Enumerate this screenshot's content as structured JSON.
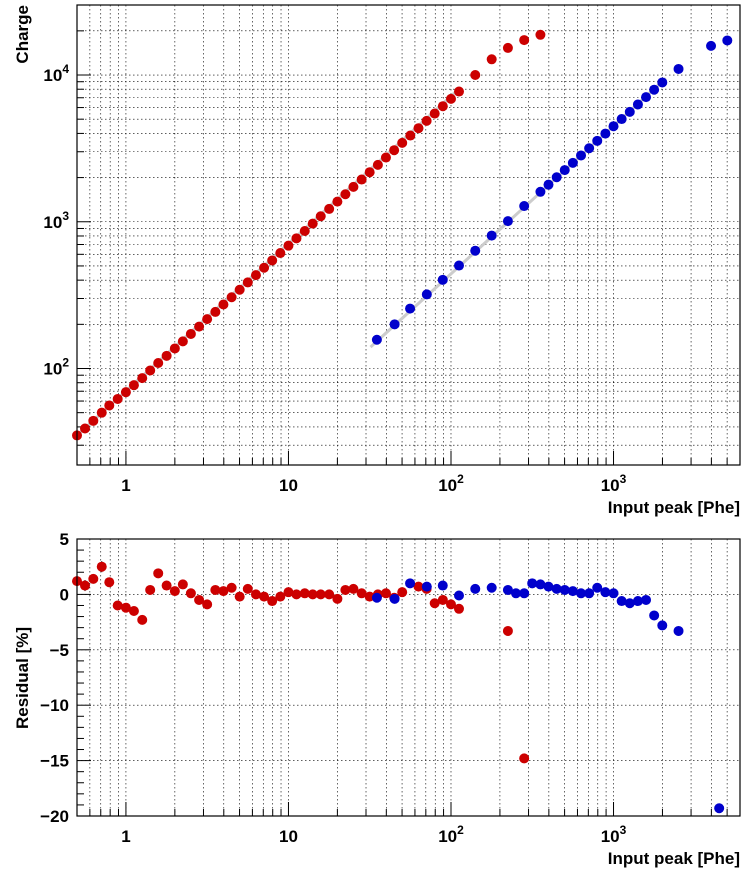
{
  "chart_data": [
    {
      "type": "scatter",
      "title": "",
      "xlabel": "Input peak  [Phe]",
      "ylabel": "Charge",
      "x_scale": "log",
      "y_scale": "log",
      "xlim": [
        0.5,
        6000
      ],
      "ylim": [
        22,
        30000
      ],
      "grid": true,
      "x_ticks": [
        {
          "value": 1,
          "label": "1"
        },
        {
          "value": 10,
          "label": "10"
        },
        {
          "value": 100,
          "label": "10",
          "exp": "2"
        },
        {
          "value": 1000,
          "label": "10",
          "exp": "3"
        }
      ],
      "y_ticks": [
        {
          "value": 100,
          "label": "10",
          "exp": "2"
        },
        {
          "value": 1000,
          "label": "10",
          "exp": "3"
        },
        {
          "value": 10000,
          "label": "10",
          "exp": "4"
        }
      ],
      "series": [
        {
          "color": "#cc0000",
          "fit_line_color": "#cccccc",
          "fit_x": [
            0.5,
            110
          ],
          "fit_y": [
            35,
            7900
          ],
          "x": [
            0.5,
            0.56,
            0.63,
            0.71,
            0.79,
            0.89,
            1.0,
            1.12,
            1.26,
            1.41,
            1.58,
            1.78,
            2.0,
            2.24,
            2.51,
            2.82,
            3.16,
            3.55,
            3.98,
            4.47,
            5.01,
            5.62,
            6.31,
            7.08,
            7.94,
            8.91,
            10.0,
            11.2,
            12.6,
            14.1,
            15.8,
            17.8,
            20.0,
            22.4,
            25.1,
            28.2,
            31.6,
            35.5,
            39.8,
            44.7,
            50.1,
            56.2,
            63.1,
            70.8,
            79.4,
            89.1,
            100,
            112,
            141,
            178,
            224,
            282,
            355
          ],
          "y": [
            35,
            39,
            44,
            50,
            56,
            62,
            69,
            77,
            86,
            97,
            109,
            122,
            137,
            153,
            172,
            193,
            217,
            243,
            273,
            306,
            344,
            386,
            433,
            486,
            545,
            612,
            687,
            771,
            865,
            971,
            1090,
            1223,
            1372,
            1540,
            1728,
            1939,
            2176,
            2441,
            2739,
            3073,
            3448,
            3868,
            4340,
            4870,
            5464,
            6130,
            6878,
            7717,
            10000,
            12800,
            15300,
            17300,
            18800
          ]
        },
        {
          "color": "#0000cc",
          "fit_line_color": "#cccccc",
          "fit_x": [
            32,
            2100
          ],
          "fit_y": [
            140,
            9500
          ],
          "x": [
            35,
            45,
            56,
            71,
            89,
            112,
            141,
            178,
            224,
            282,
            355,
            398,
            447,
            501,
            562,
            631,
            708,
            794,
            891,
            1000,
            1122,
            1259,
            1413,
            1585,
            1778,
            1995,
            2512,
            3981,
            5012
          ],
          "y": [
            157,
            200,
            256,
            320,
            402,
            503,
            635,
            805,
            1010,
            1280,
            1600,
            1790,
            2010,
            2250,
            2520,
            2830,
            3170,
            3560,
            3990,
            4480,
            5010,
            5610,
            6300,
            7070,
            7940,
            8900,
            11000,
            15800,
            17200
          ]
        }
      ]
    },
    {
      "type": "scatter",
      "title": "",
      "xlabel": "Input peak  [Phe]",
      "ylabel": "Residual [%]",
      "x_scale": "log",
      "y_scale": "linear",
      "xlim": [
        0.5,
        6000
      ],
      "ylim": [
        -20,
        5
      ],
      "grid": true,
      "x_ticks": [
        {
          "value": 1,
          "label": "1"
        },
        {
          "value": 10,
          "label": "10"
        },
        {
          "value": 100,
          "label": "10",
          "exp": "2"
        },
        {
          "value": 1000,
          "label": "10",
          "exp": "3"
        }
      ],
      "y_ticks": [
        {
          "value": 5,
          "label": "5"
        },
        {
          "value": 0,
          "label": "0"
        },
        {
          "value": -5,
          "label": "−5"
        },
        {
          "value": -10,
          "label": "−10"
        },
        {
          "value": -15,
          "label": "−15"
        },
        {
          "value": -20,
          "label": "−20"
        }
      ],
      "series": [
        {
          "color": "#cc0000",
          "x": [
            0.5,
            0.56,
            0.63,
            0.71,
            0.79,
            0.89,
            1.0,
            1.12,
            1.26,
            1.41,
            1.58,
            1.78,
            2.0,
            2.24,
            2.51,
            2.82,
            3.16,
            3.55,
            3.98,
            4.47,
            5.01,
            5.62,
            6.31,
            7.08,
            7.94,
            8.91,
            10.0,
            11.2,
            12.6,
            14.1,
            15.8,
            17.8,
            20.0,
            22.4,
            25.1,
            28.2,
            31.6,
            35.5,
            39.8,
            44.7,
            50.1,
            63.1,
            70.8,
            79.4,
            89.1,
            100,
            112,
            224,
            282
          ],
          "y": [
            1.2,
            0.8,
            1.4,
            2.5,
            1.1,
            -1.0,
            -1.2,
            -1.5,
            -2.3,
            0.4,
            1.9,
            0.8,
            0.3,
            0.9,
            0.1,
            -0.5,
            -0.9,
            0.4,
            0.3,
            0.6,
            -0.2,
            0.5,
            0.0,
            -0.2,
            -0.6,
            -0.2,
            0.2,
            0.0,
            0.1,
            0.0,
            0.0,
            0.0,
            -0.4,
            0.4,
            0.5,
            0.1,
            -0.2,
            0.0,
            0.1,
            -0.3,
            0.2,
            0.7,
            0.5,
            -0.8,
            -0.5,
            -0.9,
            -1.3,
            -3.3,
            -14.8
          ],
          "err": [
            0.6,
            0.5,
            0.4,
            0.5,
            0.3,
            0,
            0,
            0,
            0,
            0,
            0,
            0,
            0,
            0,
            0,
            0,
            0,
            0,
            0,
            0,
            0,
            0,
            0,
            0,
            0,
            0,
            0,
            0,
            0,
            0,
            0,
            0,
            0,
            0,
            0,
            0,
            0,
            0,
            0,
            0,
            0,
            0,
            0,
            0,
            0,
            0,
            0,
            0,
            0
          ]
        },
        {
          "color": "#0000cc",
          "x": [
            35,
            45,
            56,
            71,
            89,
            112,
            141,
            178,
            224,
            251,
            282,
            316,
            355,
            398,
            447,
            501,
            562,
            631,
            708,
            794,
            891,
            1000,
            1122,
            1259,
            1413,
            1585,
            1778,
            1995,
            2512,
            4467
          ],
          "y": [
            -0.3,
            -0.4,
            1.0,
            0.7,
            0.8,
            -0.1,
            0.5,
            0.6,
            0.4,
            0.1,
            0.1,
            1.0,
            0.9,
            0.7,
            0.5,
            0.4,
            0.3,
            0.1,
            0.1,
            0.6,
            0.2,
            0.1,
            -0.6,
            -0.8,
            -0.6,
            -0.5,
            -1.9,
            -2.8,
            -3.3,
            -19.3
          ]
        }
      ]
    }
  ]
}
